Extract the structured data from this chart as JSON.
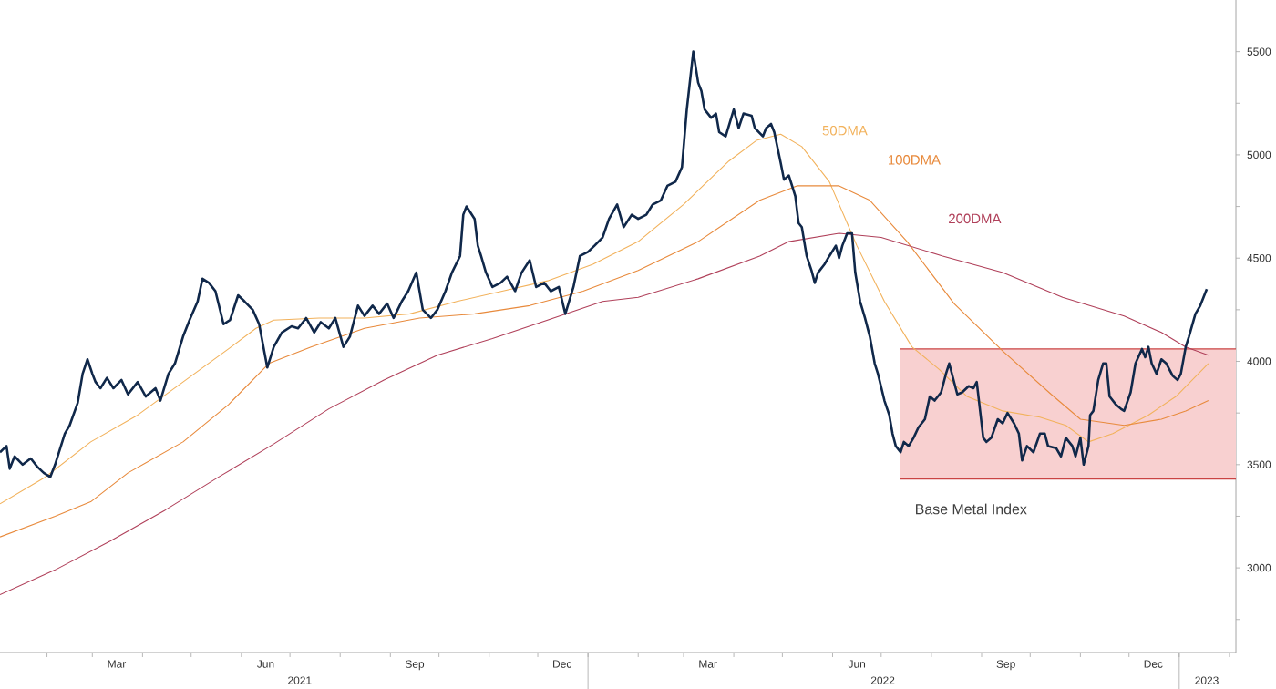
{
  "chart_data": {
    "type": "line",
    "xlim": [
      "2021-01-03",
      "2023-02-05"
    ],
    "ylim": [
      2590,
      5750
    ],
    "yticks": [
      {
        "value": 2750,
        "label": null
      },
      3000,
      {
        "value": 3250,
        "label": null
      },
      3500,
      {
        "value": 3750,
        "label": null
      },
      4000,
      {
        "value": 4250,
        "label": null
      },
      4500,
      {
        "value": 4750,
        "label": null
      },
      5000,
      {
        "value": 5250,
        "label": null
      },
      5500
    ],
    "xticks": [
      {
        "value": "2021-02-01",
        "label": null
      },
      {
        "value": "2021-03-01",
        "label": null
      },
      {
        "value": "2021-04-01",
        "label": null
      },
      {
        "value": "2021-05-01",
        "label": null
      },
      {
        "value": "2021-06-01",
        "label": null
      },
      {
        "value": "2021-07-01",
        "label": null
      },
      {
        "value": "2021-08-01",
        "label": null
      },
      {
        "value": "2021-09-01",
        "label": null
      },
      {
        "value": "2021-10-01",
        "label": null
      },
      {
        "value": "2021-11-01",
        "label": null
      },
      {
        "value": "2021-12-01",
        "label": null
      },
      {
        "value": "2022-01-01",
        "label": null
      },
      {
        "value": "2022-02-01",
        "label": null
      },
      {
        "value": "2022-03-01",
        "label": null
      },
      {
        "value": "2022-04-01",
        "label": null
      },
      {
        "value": "2022-05-01",
        "label": null
      },
      {
        "value": "2022-06-01",
        "label": null
      },
      {
        "value": "2022-07-01",
        "label": null
      },
      {
        "value": "2022-08-01",
        "label": null
      },
      {
        "value": "2022-09-01",
        "label": null
      },
      {
        "value": "2022-10-01",
        "label": null
      },
      {
        "value": "2022-11-01",
        "label": null
      },
      {
        "value": "2022-12-01",
        "label": null
      },
      {
        "value": "2023-01-01",
        "label": null
      },
      {
        "value": "2023-02-01",
        "label": null
      },
      {
        "value": "2021-03-16",
        "label": "Mar"
      },
      {
        "value": "2021-06-16",
        "label": "Jun"
      },
      {
        "value": "2021-09-16",
        "label": "Sep"
      },
      {
        "value": "2021-12-16",
        "label": "Dec"
      },
      {
        "value": "2022-03-16",
        "label": "Mar"
      },
      {
        "value": "2022-06-16",
        "label": "Jun"
      },
      {
        "value": "2022-09-16",
        "label": "Sep"
      },
      {
        "value": "2022-12-16",
        "label": "Dec"
      }
    ],
    "x2lim": [
      "2021-01-03",
      "2023-02-05"
    ],
    "x2ticks": [
      {
        "value": "2021-07-07",
        "label": "2021"
      },
      {
        "value": "2022-07-02",
        "label": "2022"
      },
      {
        "value": "2023-01-18",
        "label": "2023"
      }
    ],
    "bands": [
      {
        "axis": "y",
        "from": 3430,
        "to": 4060,
        "color": "#f8d0d0"
      }
    ],
    "ref_lines": [
      {
        "axis": "y",
        "value": 3430,
        "color": "#ca4343"
      },
      {
        "axis": "y",
        "value": 4060,
        "color": "#ca4343"
      }
    ],
    "series": [
      {
        "name": "Base Metal Index",
        "color": "#10284a",
        "x": [
          "2021-01-03",
          "2021-01-07",
          "2021-01-09",
          "2021-01-12",
          "2021-01-17",
          "2021-01-22",
          "2021-01-26",
          "2021-01-30",
          "2021-02-03",
          "2021-02-06",
          "2021-02-12",
          "2021-02-15",
          "2021-02-20",
          "2021-02-23",
          "2021-02-26",
          "2021-03-01",
          "2021-03-03",
          "2021-03-06",
          "2021-03-10",
          "2021-03-14",
          "2021-03-19",
          "2021-03-23",
          "2021-03-29",
          "2021-04-03",
          "2021-04-09",
          "2021-04-12",
          "2021-04-17",
          "2021-04-21",
          "2021-04-26",
          "2021-04-30",
          "2021-05-05",
          "2021-05-08",
          "2021-05-12",
          "2021-05-16",
          "2021-05-21",
          "2021-05-25",
          "2021-05-30",
          "2021-06-03",
          "2021-06-08",
          "2021-06-12",
          "2021-06-17",
          "2021-06-21",
          "2021-06-26",
          "2021-07-02",
          "2021-07-06",
          "2021-07-11",
          "2021-07-16",
          "2021-07-20",
          "2021-07-25",
          "2021-07-29",
          "2021-08-03",
          "2021-08-07",
          "2021-08-12",
          "2021-08-16",
          "2021-08-21",
          "2021-08-25",
          "2021-08-30",
          "2021-09-03",
          "2021-09-08",
          "2021-09-12",
          "2021-09-17",
          "2021-09-21",
          "2021-09-26",
          "2021-09-30",
          "2021-10-05",
          "2021-10-09",
          "2021-10-14",
          "2021-10-16",
          "2021-10-18",
          "2021-10-23",
          "2021-10-25",
          "2021-10-27",
          "2021-10-30",
          "2021-11-03",
          "2021-11-08",
          "2021-11-12",
          "2021-11-17",
          "2021-11-21",
          "2021-11-26",
          "2021-11-30",
          "2021-12-05",
          "2021-12-09",
          "2021-12-14",
          "2021-12-18",
          "2021-12-23",
          "2021-12-27",
          "2022-01-01",
          "2022-01-05",
          "2022-01-10",
          "2022-01-14",
          "2022-01-19",
          "2022-01-23",
          "2022-01-28",
          "2022-02-01",
          "2022-02-06",
          "2022-02-10",
          "2022-02-15",
          "2022-02-19",
          "2022-02-24",
          "2022-02-28",
          "2022-03-03",
          "2022-03-07",
          "2022-03-10",
          "2022-03-12",
          "2022-03-14",
          "2022-03-18",
          "2022-03-21",
          "2022-03-23",
          "2022-03-27",
          "2022-04-01",
          "2022-04-04",
          "2022-04-07",
          "2022-04-12",
          "2022-04-14",
          "2022-04-19",
          "2022-04-21",
          "2022-04-24",
          "2022-04-26",
          "2022-04-30",
          "2022-05-02",
          "2022-05-05",
          "2022-05-09",
          "2022-05-11",
          "2022-05-13",
          "2022-05-16",
          "2022-05-19",
          "2022-05-21",
          "2022-05-23",
          "2022-05-27",
          "2022-05-30",
          "2022-06-03",
          "2022-06-05",
          "2022-06-07",
          "2022-06-10",
          "2022-06-13",
          "2022-06-15",
          "2022-06-18",
          "2022-06-21",
          "2022-06-24",
          "2022-06-27",
          "2022-06-29",
          "2022-07-03",
          "2022-07-06",
          "2022-07-08",
          "2022-07-10",
          "2022-07-13",
          "2022-07-15",
          "2022-07-18",
          "2022-07-21",
          "2022-07-24",
          "2022-07-28",
          "2022-07-31",
          "2022-08-03",
          "2022-08-07",
          "2022-08-10",
          "2022-08-12",
          "2022-08-17",
          "2022-08-20",
          "2022-08-24",
          "2022-08-27",
          "2022-08-29",
          "2022-09-02",
          "2022-09-04",
          "2022-09-07",
          "2022-09-11",
          "2022-09-14",
          "2022-09-17",
          "2022-09-21",
          "2022-09-24",
          "2022-09-26",
          "2022-09-29",
          "2022-10-03",
          "2022-10-07",
          "2022-10-10",
          "2022-10-12",
          "2022-10-17",
          "2022-10-20",
          "2022-10-23",
          "2022-10-27",
          "2022-10-29",
          "2022-11-01",
          "2022-11-03",
          "2022-11-06",
          "2022-11-07",
          "2022-11-09",
          "2022-11-12",
          "2022-11-15",
          "2022-11-17",
          "2022-11-19",
          "2022-11-23",
          "2022-11-26",
          "2022-11-28",
          "2022-12-02",
          "2022-12-05",
          "2022-12-09",
          "2022-12-11",
          "2022-12-13",
          "2022-12-15",
          "2022-12-18",
          "2022-12-21",
          "2022-12-24",
          "2022-12-28",
          "2022-12-31",
          "2023-01-02",
          "2023-01-05",
          "2023-01-07",
          "2023-01-11",
          "2023-01-14",
          "2023-01-16",
          "2023-01-18"
        ],
        "values": [
          3560,
          3590,
          3480,
          3540,
          3500,
          3530,
          3490,
          3460,
          3440,
          3500,
          3650,
          3690,
          3800,
          3940,
          4010,
          3940,
          3900,
          3870,
          3920,
          3870,
          3910,
          3840,
          3900,
          3830,
          3870,
          3810,
          3940,
          3990,
          4120,
          4200,
          4290,
          4400,
          4380,
          4340,
          4180,
          4200,
          4320,
          4290,
          4250,
          4180,
          3970,
          4070,
          4140,
          4170,
          4160,
          4210,
          4140,
          4190,
          4160,
          4210,
          4070,
          4120,
          4270,
          4220,
          4270,
          4230,
          4280,
          4210,
          4290,
          4340,
          4430,
          4250,
          4210,
          4250,
          4340,
          4430,
          4510,
          4710,
          4750,
          4690,
          4560,
          4510,
          4430,
          4360,
          4380,
          4410,
          4340,
          4430,
          4490,
          4360,
          4380,
          4340,
          4360,
          4230,
          4360,
          4510,
          4530,
          4560,
          4600,
          4690,
          4760,
          4650,
          4710,
          4690,
          4710,
          4760,
          4780,
          4850,
          4870,
          4940,
          5220,
          5500,
          5350,
          5310,
          5220,
          5180,
          5200,
          5110,
          5090,
          5220,
          5130,
          5200,
          5190,
          5130,
          5090,
          5130,
          5150,
          5110,
          4960,
          4880,
          4900,
          4800,
          4670,
          4650,
          4510,
          4440,
          4380,
          4430,
          4470,
          4510,
          4560,
          4500,
          4560,
          4620,
          4620,
          4430,
          4290,
          4210,
          4120,
          3990,
          3940,
          3810,
          3740,
          3650,
          3590,
          3560,
          3610,
          3590,
          3630,
          3680,
          3720,
          3830,
          3810,
          3850,
          3940,
          3990,
          3840,
          3850,
          3880,
          3870,
          3900,
          3630,
          3610,
          3630,
          3720,
          3700,
          3750,
          3700,
          3650,
          3520,
          3590,
          3560,
          3650,
          3650,
          3590,
          3580,
          3540,
          3630,
          3590,
          3540,
          3630,
          3500,
          3590,
          3740,
          3760,
          3910,
          3990,
          3990,
          3830,
          3790,
          3770,
          3760,
          3850,
          3990,
          4060,
          4020,
          4070,
          3990,
          3940,
          4010,
          3990,
          3930,
          3910,
          3940,
          4070,
          4120,
          4230,
          4270,
          4310,
          4350
        ]
      },
      {
        "name": "50DMA",
        "color": "#f2b25c",
        "x": [
          "2021-01-03",
          "2021-01-31",
          "2021-02-28",
          "2021-03-29",
          "2021-04-26",
          "2021-05-24",
          "2021-06-10",
          "2021-06-21",
          "2021-07-19",
          "2021-08-16",
          "2021-09-13",
          "2021-10-12",
          "2021-11-09",
          "2021-12-07",
          "2022-01-04",
          "2022-02-01",
          "2022-03-01",
          "2022-03-29",
          "2022-04-15",
          "2022-04-30",
          "2022-05-13",
          "2022-05-30",
          "2022-06-16",
          "2022-07-03",
          "2022-07-20",
          "2022-08-06",
          "2022-08-23",
          "2022-09-14",
          "2022-10-07",
          "2022-10-23",
          "2022-11-06",
          "2022-11-21",
          "2022-12-13",
          "2022-12-30",
          "2023-01-19"
        ],
        "values": [
          3310,
          3440,
          3610,
          3740,
          3900,
          4060,
          4160,
          4200,
          4210,
          4210,
          4230,
          4290,
          4340,
          4390,
          4470,
          4580,
          4760,
          4970,
          5070,
          5100,
          5040,
          4870,
          4560,
          4290,
          4070,
          3960,
          3830,
          3760,
          3730,
          3690,
          3610,
          3650,
          3740,
          3830,
          3990
        ]
      },
      {
        "name": "100DMA",
        "color": "#e88a3c",
        "x": [
          "2021-01-03",
          "2021-02-06",
          "2021-02-28",
          "2021-03-23",
          "2021-04-26",
          "2021-05-24",
          "2021-06-18",
          "2021-07-14",
          "2021-08-16",
          "2021-09-19",
          "2021-10-23",
          "2021-11-26",
          "2021-12-29",
          "2022-02-01",
          "2022-03-10",
          "2022-04-17",
          "2022-05-10",
          "2022-06-05",
          "2022-06-24",
          "2022-07-17",
          "2022-08-15",
          "2022-09-14",
          "2022-10-14",
          "2022-11-01",
          "2022-11-28",
          "2022-12-21",
          "2023-01-05",
          "2023-01-19"
        ],
        "values": [
          3150,
          3250,
          3320,
          3460,
          3610,
          3790,
          3990,
          4070,
          4160,
          4210,
          4230,
          4270,
          4340,
          4440,
          4580,
          4780,
          4850,
          4850,
          4780,
          4580,
          4280,
          4050,
          3840,
          3720,
          3690,
          3720,
          3760,
          3810
        ]
      },
      {
        "name": "200DMA",
        "color": "#b0405a",
        "x": [
          "2021-01-03",
          "2021-02-06",
          "2021-03-12",
          "2021-04-15",
          "2021-05-18",
          "2021-06-21",
          "2021-07-25",
          "2021-08-28",
          "2021-09-30",
          "2021-11-03",
          "2021-12-07",
          "2022-01-10",
          "2022-02-01",
          "2022-03-10",
          "2022-04-17",
          "2022-05-05",
          "2022-06-05",
          "2022-07-01",
          "2022-08-08",
          "2022-09-14",
          "2022-10-21",
          "2022-11-28",
          "2022-12-21",
          "2023-01-05",
          "2023-01-19"
        ],
        "values": [
          2870,
          2990,
          3130,
          3280,
          3440,
          3600,
          3770,
          3910,
          4030,
          4110,
          4200,
          4290,
          4310,
          4400,
          4510,
          4580,
          4620,
          4600,
          4510,
          4430,
          4310,
          4220,
          4140,
          4070,
          4030
        ]
      }
    ]
  }
}
